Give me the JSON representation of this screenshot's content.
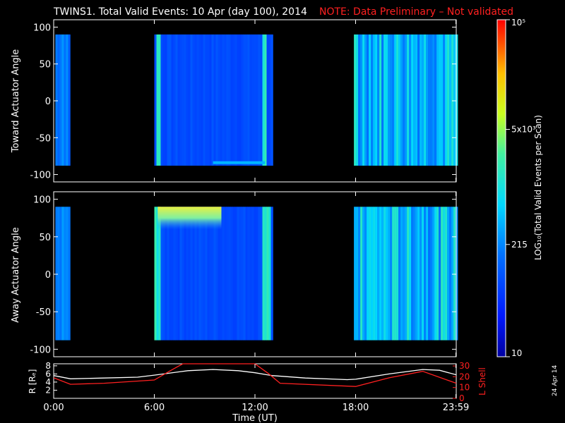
{
  "title": {
    "main": "TWINS1. Total Valid Events: 10 Apr (day 100), 2014",
    "note": "NOTE: Data Preliminary – Not validated",
    "note_color": "#ff2020"
  },
  "side_date": "24 Apr 14",
  "time_axis": {
    "label": "Time (UT)",
    "ticks": [
      "0:00",
      "6:00",
      "12:00",
      "18:00",
      "23:59"
    ],
    "range_hours": [
      0,
      24
    ]
  },
  "colorbar": {
    "label": "LOG₁₀(Total Valid Events per Scan)",
    "scale": "log",
    "ticks": [
      "10",
      "215",
      "5x10³",
      "10⁵"
    ],
    "range": [
      10,
      100000
    ]
  },
  "chart_data": [
    {
      "type": "heatmap",
      "ylabel": "Toward Actuator Angle",
      "ylim": [
        -110,
        110
      ],
      "yticks": [
        "100",
        "50",
        "0",
        "-50",
        "-100"
      ],
      "y_extent": [
        -88,
        90
      ],
      "time_blocks_hours": [
        [
          0.1,
          0.9
        ],
        [
          6.0,
          13.0
        ],
        [
          17.9,
          24.0
        ]
      ],
      "edge_hours": [
        [
          6.1,
          6.35
        ],
        [
          12.4,
          12.6
        ],
        [
          17.95,
          18.3
        ]
      ],
      "notes": "mostly blue (~50-200 events), cyan/green bands at block edges"
    },
    {
      "type": "heatmap",
      "ylabel": "Away Actuator Angle",
      "ylim": [
        -110,
        110
      ],
      "yticks": [
        "100",
        "50",
        "0",
        "-50",
        "-100"
      ],
      "y_extent": [
        -88,
        90
      ],
      "time_blocks_hours": [
        [
          0.1,
          0.9
        ],
        [
          6.0,
          13.0
        ],
        [
          17.9,
          24.0
        ]
      ],
      "edge_hours": [
        [
          6.0,
          6.35
        ],
        [
          12.4,
          12.9
        ],
        [
          17.9,
          18.4
        ]
      ],
      "notes": "yellow band near top between 6:00 and 10:00"
    },
    {
      "type": "line",
      "ylabel_left": "R [Rₑ]",
      "ylabel_right": "L Shell",
      "yticks_left": [
        "8",
        "6",
        "4",
        "2"
      ],
      "yticks_right": [
        "30",
        "20",
        "10",
        "0"
      ],
      "ylim_left": [
        0,
        8.5
      ],
      "ylim_right": [
        0,
        32
      ],
      "series": [
        {
          "name": "R [Rₑ]",
          "color": "#ffffff",
          "x": [
            0,
            1,
            3,
            5,
            6,
            8,
            9.5,
            11,
            12,
            13,
            15,
            17.5,
            18,
            20,
            22,
            23,
            24
          ],
          "y": [
            5.6,
            4.8,
            5.0,
            5.2,
            5.7,
            6.8,
            7.1,
            6.8,
            6.3,
            5.6,
            5.0,
            4.6,
            4.7,
            6.0,
            7.1,
            6.9,
            5.8
          ]
        },
        {
          "name": "L Shell",
          "color": "#ff2020",
          "x": [
            0,
            1,
            3,
            6,
            7,
            7.7,
            12,
            12.8,
            13.5,
            18,
            20,
            22,
            24
          ],
          "y": [
            19,
            13,
            14,
            17,
            26,
            33,
            33,
            23,
            14,
            11,
            19,
            25,
            14
          ]
        }
      ]
    }
  ]
}
